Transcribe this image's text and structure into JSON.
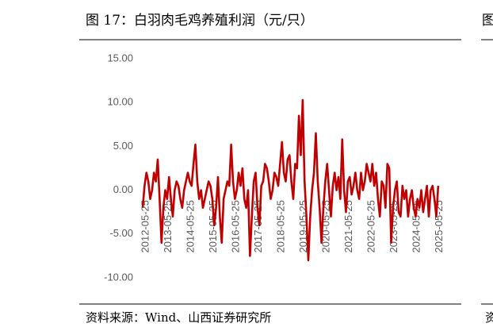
{
  "chart_data": {
    "type": "line",
    "title": "图 17：白羽肉毛鸡养殖利润（元/只）",
    "source": "资料来源：Wind、山西证券研究所",
    "neighbor_fragments": {
      "title": "图",
      "source": "资"
    },
    "categories": [
      "2012-05-25",
      null,
      null,
      null,
      null,
      null,
      null,
      null,
      null,
      null,
      null,
      null,
      "2013-05-25",
      null,
      null,
      null,
      null,
      null,
      null,
      null,
      null,
      null,
      null,
      null,
      "2014-05-25",
      null,
      null,
      null,
      null,
      null,
      null,
      null,
      null,
      null,
      null,
      null,
      "2015-05-25",
      null,
      null,
      null,
      null,
      null,
      null,
      null,
      null,
      null,
      null,
      null,
      "2016-05-25",
      null,
      null,
      null,
      null,
      null,
      null,
      null,
      null,
      null,
      null,
      null,
      "2017-05-25",
      null,
      null,
      null,
      null,
      null,
      null,
      null,
      null,
      null,
      null,
      null,
      "2018-05-25",
      null,
      null,
      null,
      null,
      null,
      null,
      null,
      null,
      null,
      null,
      null,
      "2019-05-25",
      null,
      null,
      null,
      null,
      null,
      null,
      null,
      null,
      null,
      null,
      null,
      "2020-05-25",
      null,
      null,
      null,
      null,
      null,
      null,
      null,
      null,
      null,
      null,
      null,
      "2021-05-25",
      null,
      null,
      null,
      null,
      null,
      null,
      null,
      null,
      null,
      null,
      null,
      "2022-05-25",
      null,
      null,
      null,
      null,
      null,
      null,
      null,
      null,
      null,
      null,
      null,
      "2023-05-25",
      null,
      null,
      null,
      null,
      null,
      null,
      null,
      null,
      null,
      null,
      null,
      "2024-05-25",
      null,
      null,
      null,
      null,
      null,
      null,
      null,
      null,
      null,
      null,
      null,
      "2025-05-25",
      null
    ],
    "series": [
      {
        "name": "白羽肉毛鸡养殖利润",
        "color": "#c00000",
        "values": [
          -2,
          0.5,
          2,
          1,
          -1,
          0,
          2,
          1,
          3.5,
          -1,
          -6,
          -2,
          0,
          -1,
          1.5,
          -1,
          -3,
          0,
          1,
          0.5,
          -1,
          -2,
          0,
          1,
          2,
          1,
          0.5,
          3,
          5.2,
          1,
          -1,
          0,
          -2,
          -1,
          0,
          1,
          0.5,
          -1,
          -4,
          -2,
          1.5,
          -3,
          -6,
          -1,
          0,
          1,
          0.5,
          5.2,
          1,
          -1,
          0,
          2,
          0.5,
          2.5,
          -1,
          -2,
          0,
          -7.5,
          -3,
          1,
          2,
          -2,
          -4,
          0.5,
          1,
          3,
          2.5,
          1,
          -1,
          0,
          2,
          1.5,
          0.5,
          3,
          5.5,
          2,
          1,
          3.5,
          4,
          1,
          -1,
          3,
          2.5,
          8.5,
          4,
          10.3,
          1,
          -3,
          -8,
          -3,
          0,
          2,
          6.5,
          1,
          -2,
          -6,
          -2,
          1,
          3,
          0,
          -3,
          0.5,
          2,
          0,
          1.5,
          -1,
          5.8,
          0,
          -2.5,
          1,
          1.5,
          -0.5,
          0.5,
          2,
          0,
          -1,
          2,
          0,
          1,
          3,
          2,
          1,
          3,
          0.5,
          2,
          -1,
          -3,
          1,
          0.5,
          -2,
          3,
          2.5,
          -6,
          -2,
          0,
          1,
          -2.5,
          -3,
          0.5,
          -1,
          0,
          -3,
          -1,
          0,
          -2,
          -3,
          -1,
          -2,
          0,
          -2.5,
          -1,
          0.5,
          -3,
          0,
          0.5,
          -1,
          -3,
          0.5
        ]
      }
    ],
    "ylim": [
      -10,
      15
    ],
    "yticks": [
      {
        "value": -10,
        "label": "-10.00"
      },
      {
        "value": -5,
        "label": "-5.00"
      },
      {
        "value": 0,
        "label": "0.00"
      },
      {
        "value": 5,
        "label": "5.00"
      },
      {
        "value": 10,
        "label": "10.00"
      },
      {
        "value": 15,
        "label": "15.00"
      }
    ],
    "grid": false
  }
}
